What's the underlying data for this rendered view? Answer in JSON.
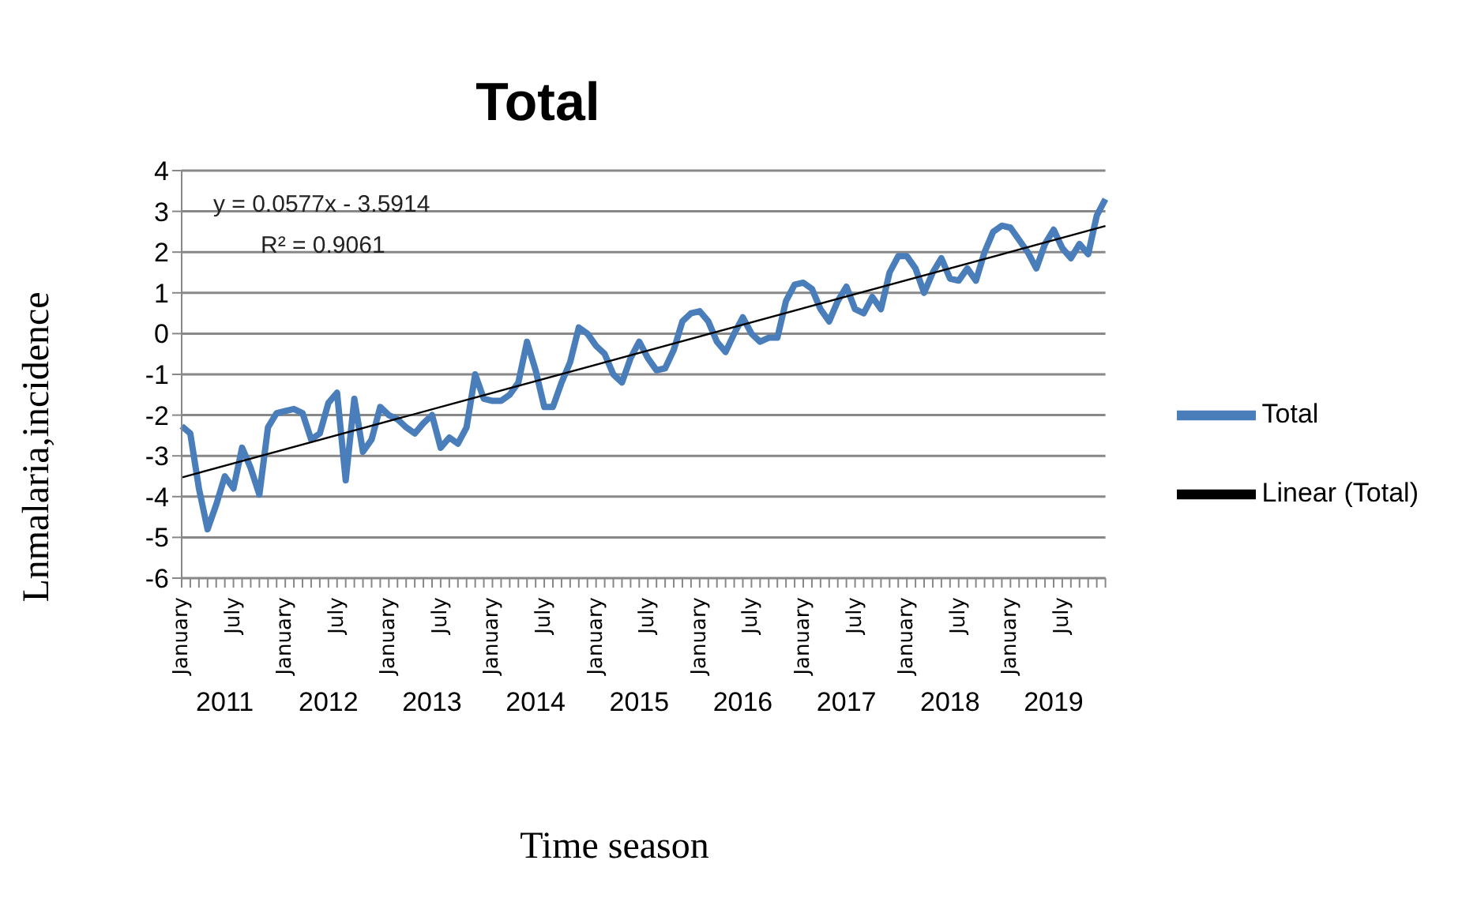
{
  "chart_data": {
    "type": "line",
    "title": "Total",
    "xlabel": "Time season",
    "ylabel": "Lnmalaria,incidence",
    "categories": [
      "January",
      null,
      null,
      null,
      null,
      null,
      "July",
      null,
      null,
      null,
      null,
      null,
      "January",
      null,
      null,
      null,
      null,
      null,
      "July",
      null,
      null,
      null,
      null,
      null,
      "January",
      null,
      null,
      null,
      null,
      null,
      "July",
      null,
      null,
      null,
      null,
      null,
      "January",
      null,
      null,
      null,
      null,
      null,
      "July",
      null,
      null,
      null,
      null,
      null,
      "January",
      null,
      null,
      null,
      null,
      null,
      "July",
      null,
      null,
      null,
      null,
      null,
      "January",
      null,
      null,
      null,
      null,
      null,
      "July",
      null,
      null,
      null,
      null,
      null,
      "January",
      null,
      null,
      null,
      null,
      null,
      "July",
      null,
      null,
      null,
      null,
      null,
      "January",
      null,
      null,
      null,
      null,
      null,
      "July",
      null,
      null,
      null,
      null,
      null,
      "January",
      null,
      null,
      null,
      null,
      null,
      "July",
      null,
      null,
      null,
      null,
      null
    ],
    "series": [
      {
        "name": "Total",
        "color": "#4a7ebb",
        "values": [
          -2.27,
          -2.45,
          -3.8,
          -4.8,
          -4.2,
          -3.5,
          -3.8,
          -2.8,
          -3.3,
          -3.95,
          -2.3,
          -1.95,
          -1.9,
          -1.85,
          -1.95,
          -2.6,
          -2.45,
          -1.7,
          -1.45,
          -3.6,
          -1.6,
          -2.9,
          -2.6,
          -1.8,
          -2.0,
          -2.1,
          -2.3,
          -2.45,
          -2.2,
          -2.0,
          -2.8,
          -2.55,
          -2.7,
          -2.3,
          -1.0,
          -1.6,
          -1.65,
          -1.65,
          -1.5,
          -1.2,
          -0.2,
          -0.9,
          -1.8,
          -1.8,
          -1.2,
          -0.7,
          0.15,
          0.0,
          -0.3,
          -0.5,
          -1.0,
          -1.2,
          -0.6,
          -0.2,
          -0.6,
          -0.9,
          -0.85,
          -0.4,
          0.3,
          0.5,
          0.55,
          0.3,
          -0.2,
          -0.45,
          0.0,
          0.4,
          0.0,
          -0.2,
          -0.1,
          -0.1,
          0.8,
          1.2,
          1.25,
          1.1,
          0.6,
          0.3,
          0.8,
          1.15,
          0.6,
          0.5,
          0.9,
          0.6,
          1.5,
          1.9,
          1.9,
          1.6,
          1.0,
          1.5,
          1.85,
          1.35,
          1.3,
          1.6,
          1.3,
          2.0,
          2.5,
          2.65,
          2.6,
          2.3,
          2.0,
          1.6,
          2.2,
          2.55,
          2.1,
          1.85,
          2.2,
          1.95,
          2.9,
          3.3
        ]
      },
      {
        "name": "Linear (Total)",
        "type": "line",
        "color": "#000000",
        "values": [
          -3.53,
          null,
          null,
          null,
          null,
          null,
          null,
          null,
          null,
          null,
          null,
          null,
          null,
          null,
          null,
          null,
          null,
          null,
          null,
          null,
          null,
          null,
          null,
          null,
          null,
          null,
          null,
          null,
          null,
          null,
          null,
          null,
          null,
          null,
          null,
          null,
          null,
          null,
          null,
          null,
          null,
          null,
          null,
          null,
          null,
          null,
          null,
          null,
          null,
          null,
          null,
          null,
          null,
          null,
          null,
          null,
          null,
          null,
          null,
          null,
          null,
          null,
          null,
          null,
          null,
          null,
          null,
          null,
          null,
          null,
          null,
          null,
          null,
          null,
          null,
          null,
          null,
          null,
          null,
          null,
          null,
          null,
          null,
          null,
          null,
          null,
          null,
          null,
          null,
          null,
          null,
          null,
          null,
          null,
          null,
          null,
          null,
          null,
          null,
          null,
          null,
          null,
          null,
          null,
          null,
          null,
          null,
          2.64
        ]
      }
    ],
    "ylim": [
      -6,
      4
    ],
    "yticks": [
      -6,
      -5,
      -4,
      -3,
      -2,
      -1,
      0,
      1,
      2,
      3,
      4
    ],
    "annotations": [
      "y = 0.0577x - 3.5914",
      "R² = 0.9061",
      "2011",
      "2012",
      "2013",
      "2014",
      "2015",
      "2016",
      "2017",
      "2018",
      "2019"
    ],
    "grid": "y",
    "legend": "right",
    "marker": "none",
    "line_style": "solid"
  }
}
